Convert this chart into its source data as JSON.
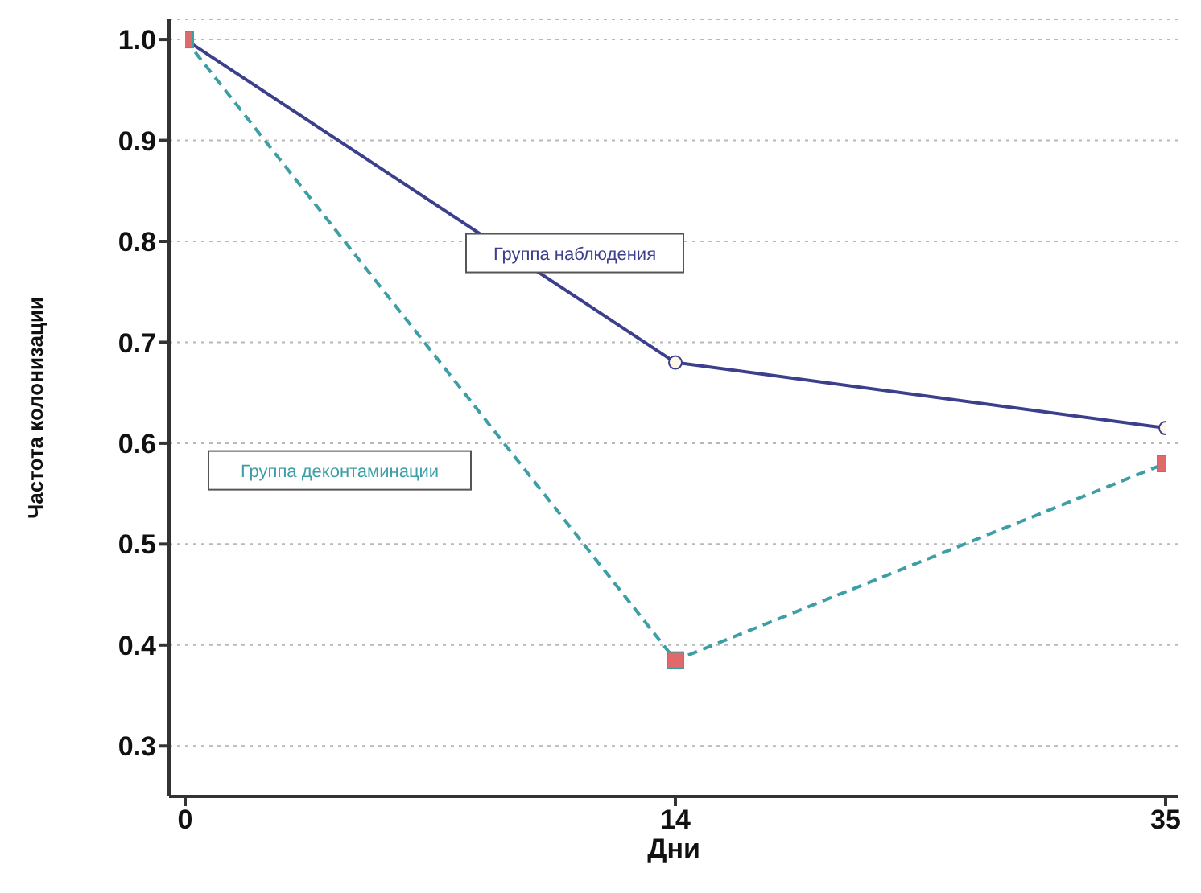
{
  "chart_data": {
    "type": "line",
    "xlabel": "Дни",
    "ylabel": "Частота колонизации",
    "categories": [
      "0",
      "14",
      "35"
    ],
    "ylim": [
      0.25,
      1.02
    ],
    "yticks": [
      0.3,
      0.4,
      0.5,
      0.6,
      0.7,
      0.8,
      0.9,
      {
        "value": 1,
        "label": "1.0"
      }
    ],
    "grid": "y",
    "legend": false,
    "series": [
      {
        "name": "Группа наблюдения",
        "color": "#3b3f8c",
        "values": [
          1.0,
          0.68,
          0.615
        ],
        "marker": "circle",
        "line_style": "solid"
      },
      {
        "name": "Группа деконтаминации",
        "color": "#3e9ea6",
        "values": [
          1.0,
          0.385,
          0.58
        ],
        "marker": "square",
        "line_style": "dashed"
      }
    ]
  }
}
